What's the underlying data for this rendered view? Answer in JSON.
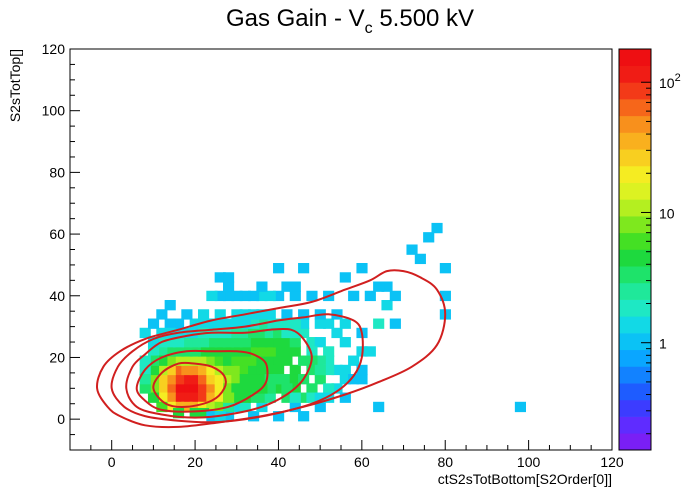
{
  "chart_data": {
    "type": "heatmap",
    "title": {
      "main": "Gas Gain - V",
      "sub": "c",
      "rest": " 5.500 kV"
    },
    "xlabel": "ctS2sTotBottom[S2Order[0]]",
    "ylabel": "S2sTotTop[]",
    "xlim": [
      -10,
      120
    ],
    "ylim": [
      -10,
      120
    ],
    "x_ticks": [
      "0",
      "20",
      "40",
      "60",
      "80",
      "100",
      "120"
    ],
    "y_ticks": [
      "0",
      "20",
      "40",
      "60",
      "80",
      "100",
      "120"
    ],
    "colorbar": {
      "scale": "log",
      "range": [
        0.15,
        180
      ],
      "labels": [
        {
          "value": 1,
          "text": "1"
        },
        {
          "value": 10,
          "text": "10"
        },
        {
          "value": 100,
          "text": "10",
          "sup": "2"
        }
      ]
    },
    "bin_size": [
      2.6,
      3.25
    ],
    "cells": [
      [
        18,
        10,
        150
      ],
      [
        20,
        10,
        150
      ],
      [
        16,
        10,
        140
      ],
      [
        18,
        7,
        130
      ],
      [
        16,
        7,
        120
      ],
      [
        20,
        7,
        120
      ],
      [
        18,
        13,
        110
      ],
      [
        20,
        13,
        110
      ],
      [
        22,
        10,
        90
      ],
      [
        16,
        13,
        90
      ],
      [
        22,
        7,
        80
      ],
      [
        14,
        10,
        70
      ],
      [
        22,
        13,
        65
      ],
      [
        16,
        16,
        60
      ],
      [
        18,
        16,
        55
      ],
      [
        20,
        16,
        55
      ],
      [
        14,
        7,
        50
      ],
      [
        14,
        13,
        45
      ],
      [
        24,
        10,
        45
      ],
      [
        18,
        4,
        40
      ],
      [
        20,
        4,
        40
      ],
      [
        16,
        4,
        38
      ],
      [
        24,
        7,
        35
      ],
      [
        22,
        16,
        35
      ],
      [
        24,
        13,
        30
      ],
      [
        12,
        10,
        28
      ],
      [
        12,
        13,
        25
      ],
      [
        14,
        16,
        28
      ],
      [
        22,
        4,
        22
      ],
      [
        26,
        10,
        20
      ],
      [
        26,
        13,
        18
      ],
      [
        26,
        7,
        18
      ],
      [
        24,
        16,
        18
      ],
      [
        14,
        4,
        20
      ],
      [
        12,
        7,
        18
      ],
      [
        20,
        19,
        12
      ],
      [
        18,
        19,
        12
      ],
      [
        16,
        19,
        10
      ],
      [
        12,
        16,
        10
      ],
      [
        22,
        19,
        10
      ],
      [
        26,
        16,
        10
      ],
      [
        28,
        13,
        10
      ],
      [
        28,
        10,
        9
      ],
      [
        28,
        16,
        8
      ],
      [
        10,
        10,
        8
      ],
      [
        10,
        13,
        7
      ],
      [
        30,
        13,
        7
      ],
      [
        30,
        16,
        7
      ],
      [
        24,
        19,
        8
      ],
      [
        14,
        19,
        7
      ],
      [
        12,
        4,
        6
      ],
      [
        10,
        16,
        5
      ],
      [
        26,
        19,
        6
      ],
      [
        28,
        19,
        5
      ],
      [
        32,
        16,
        6
      ],
      [
        32,
        19,
        6
      ],
      [
        30,
        19,
        6
      ],
      [
        24,
        4,
        10
      ],
      [
        26,
        4,
        8
      ],
      [
        16,
        2,
        5
      ],
      [
        20,
        2,
        4
      ],
      [
        22,
        2,
        4
      ],
      [
        10,
        7,
        4
      ],
      [
        8,
        10,
        3
      ],
      [
        30,
        10,
        5
      ],
      [
        32,
        13,
        5
      ],
      [
        34,
        16,
        5
      ],
      [
        34,
        19,
        6
      ],
      [
        36,
        19,
        5
      ],
      [
        36,
        16,
        5
      ],
      [
        38,
        19,
        4
      ],
      [
        40,
        19,
        5
      ],
      [
        42,
        19,
        4
      ],
      [
        44,
        16,
        4
      ],
      [
        40,
        16,
        4
      ],
      [
        38,
        16,
        4
      ],
      [
        36,
        13,
        4
      ],
      [
        38,
        13,
        3
      ],
      [
        42,
        13,
        3
      ],
      [
        44,
        13,
        4
      ],
      [
        46,
        13,
        3
      ],
      [
        40,
        10,
        4
      ],
      [
        44,
        10,
        4
      ],
      [
        48,
        10,
        3
      ],
      [
        46,
        7,
        3
      ],
      [
        42,
        7,
        3
      ],
      [
        50,
        13,
        3
      ],
      [
        48,
        16,
        3
      ],
      [
        46,
        19,
        3
      ],
      [
        44,
        22,
        4
      ],
      [
        42,
        22,
        5
      ],
      [
        40,
        22,
        5
      ],
      [
        38,
        22,
        6
      ],
      [
        36,
        22,
        6
      ],
      [
        34,
        22,
        6
      ],
      [
        32,
        22,
        5
      ],
      [
        30,
        22,
        5
      ],
      [
        28,
        22,
        4
      ],
      [
        26,
        22,
        4
      ],
      [
        24,
        22,
        4
      ],
      [
        22,
        22,
        4
      ],
      [
        20,
        22,
        3
      ],
      [
        18,
        22,
        3
      ],
      [
        16,
        22,
        3
      ],
      [
        14,
        22,
        3
      ],
      [
        12,
        22,
        2.5
      ],
      [
        10,
        22,
        2
      ],
      [
        36,
        25,
        4
      ],
      [
        38,
        25,
        4
      ],
      [
        40,
        25,
        5
      ],
      [
        42,
        25,
        4
      ],
      [
        44,
        25,
        3
      ],
      [
        34,
        25,
        4
      ],
      [
        32,
        25,
        3
      ],
      [
        30,
        25,
        3
      ],
      [
        28,
        25,
        3
      ],
      [
        26,
        25,
        3
      ],
      [
        24,
        25,
        3
      ],
      [
        22,
        25,
        2.5
      ],
      [
        20,
        25,
        2.5
      ],
      [
        18,
        25,
        2.5
      ],
      [
        16,
        25,
        2
      ],
      [
        14,
        25,
        2
      ],
      [
        12,
        25,
        1.6
      ],
      [
        10,
        25,
        1.4
      ],
      [
        8,
        28,
        1.2
      ],
      [
        12,
        28,
        1.5
      ],
      [
        16,
        28,
        1.5
      ],
      [
        20,
        28,
        1.5
      ],
      [
        24,
        28,
        2
      ],
      [
        28,
        28,
        2
      ],
      [
        32,
        28,
        2.5
      ],
      [
        34,
        28,
        3
      ],
      [
        36,
        28,
        3
      ],
      [
        38,
        28,
        2.5
      ],
      [
        40,
        28,
        3
      ],
      [
        42,
        28,
        2
      ],
      [
        44,
        28,
        1.8
      ],
      [
        46,
        28,
        1.6
      ],
      [
        48,
        25,
        2
      ],
      [
        50,
        25,
        1.5
      ],
      [
        48,
        22,
        2
      ],
      [
        52,
        22,
        1.8
      ],
      [
        52,
        19,
        2
      ],
      [
        50,
        19,
        2.5
      ],
      [
        48,
        19,
        3
      ],
      [
        54,
        16,
        1.5
      ],
      [
        52,
        16,
        2
      ],
      [
        50,
        16,
        2.5
      ],
      [
        54,
        10,
        1.5
      ],
      [
        52,
        10,
        2
      ],
      [
        56,
        13,
        1.3
      ],
      [
        58,
        19,
        1.4
      ],
      [
        60,
        22,
        1.3
      ],
      [
        62,
        22,
        1.2
      ],
      [
        56,
        25,
        1.2
      ],
      [
        54,
        28,
        1.3
      ],
      [
        52,
        31,
        1.5
      ],
      [
        50,
        31,
        1.3
      ],
      [
        46,
        31,
        1.5
      ],
      [
        44,
        31,
        1.8
      ],
      [
        42,
        31,
        1.6
      ],
      [
        40,
        31,
        2
      ],
      [
        38,
        31,
        2
      ],
      [
        36,
        31,
        2.2
      ],
      [
        34,
        31,
        1.8
      ],
      [
        32,
        31,
        1.5
      ],
      [
        30,
        31,
        1.5
      ],
      [
        28,
        31,
        1.4
      ],
      [
        26,
        31,
        1.3
      ],
      [
        24,
        31,
        1.3
      ],
      [
        22,
        31,
        1.2
      ],
      [
        20,
        31,
        1.2
      ],
      [
        16,
        31,
        1.1
      ],
      [
        14,
        31,
        1.1
      ],
      [
        10,
        31,
        1.0
      ],
      [
        12,
        34,
        1.0
      ],
      [
        14,
        37,
        1.1
      ],
      [
        18,
        34,
        1.0
      ],
      [
        22,
        34,
        1.2
      ],
      [
        26,
        34,
        1.3
      ],
      [
        30,
        34,
        1.2
      ],
      [
        32,
        34,
        1.4
      ],
      [
        34,
        34,
        1.3
      ],
      [
        36,
        34,
        1.3
      ],
      [
        38,
        34,
        1.2
      ],
      [
        42,
        34,
        1.1
      ],
      [
        46,
        34,
        1.0
      ],
      [
        50,
        34,
        1.0
      ],
      [
        54,
        34,
        1.1
      ],
      [
        56,
        31,
        1.2
      ],
      [
        60,
        28,
        1.0
      ],
      [
        64,
        31,
        2.0
      ],
      [
        66,
        37,
        1.5
      ],
      [
        62,
        40,
        1.0
      ],
      [
        66,
        43,
        1.0
      ],
      [
        68,
        40,
        1.1
      ],
      [
        64,
        43,
        1.0
      ],
      [
        58,
        40,
        1.0
      ],
      [
        52,
        40,
        1.0
      ],
      [
        48,
        40,
        1.1
      ],
      [
        44,
        40,
        1.0
      ],
      [
        40,
        40,
        1.0
      ],
      [
        38,
        40,
        1.3
      ],
      [
        36,
        40,
        1.2
      ],
      [
        34,
        40,
        1.0
      ],
      [
        32,
        40,
        1.0
      ],
      [
        30,
        40,
        1.1
      ],
      [
        28,
        40,
        1.0
      ],
      [
        26,
        40,
        1.0
      ],
      [
        24,
        40,
        1.2
      ],
      [
        28,
        43,
        1.0
      ],
      [
        26,
        46,
        1.1
      ],
      [
        28,
        46,
        1.0
      ],
      [
        36,
        43,
        1.0
      ],
      [
        42,
        43,
        1.0
      ],
      [
        44,
        43,
        1.1
      ],
      [
        56,
        46,
        1.0
      ],
      [
        40,
        49,
        1.0
      ],
      [
        46,
        49,
        1.0
      ],
      [
        60,
        49,
        1.0
      ],
      [
        74,
        52,
        1.0
      ],
      [
        80,
        49,
        1.0
      ],
      [
        72,
        55,
        1.0
      ],
      [
        76,
        59,
        1.0
      ],
      [
        78,
        62,
        1.0
      ],
      [
        80,
        40,
        1.0
      ],
      [
        80,
        34,
        1.0
      ],
      [
        68,
        31,
        1.0
      ],
      [
        60,
        13,
        1.0
      ],
      [
        56,
        7,
        1.0
      ],
      [
        64,
        4,
        1.0
      ],
      [
        50,
        4,
        1.0
      ],
      [
        44,
        4,
        1.0
      ],
      [
        40,
        1,
        1.0
      ],
      [
        46,
        1,
        1.0
      ],
      [
        34,
        1,
        1.0
      ],
      [
        28,
        1,
        1.0
      ],
      [
        24,
        1,
        1.0
      ],
      [
        30,
        4,
        1.5
      ],
      [
        28,
        4,
        2.5
      ],
      [
        32,
        4,
        2
      ],
      [
        36,
        4,
        1.5
      ],
      [
        34,
        7,
        3
      ],
      [
        32,
        7,
        4
      ],
      [
        30,
        7,
        5
      ],
      [
        28,
        7,
        7
      ],
      [
        26,
        1,
        1.5
      ],
      [
        36,
        7,
        3
      ],
      [
        38,
        7,
        2.5
      ],
      [
        38,
        10,
        3
      ],
      [
        36,
        10,
        4
      ],
      [
        34,
        10,
        5
      ],
      [
        32,
        10,
        5
      ],
      [
        40,
        13,
        3.5
      ],
      [
        34,
        13,
        5
      ],
      [
        42,
        10,
        3
      ],
      [
        44,
        7,
        2
      ],
      [
        48,
        7,
        2
      ],
      [
        50,
        7,
        1.5
      ],
      [
        52,
        7,
        1.2
      ],
      [
        56,
        16,
        1.2
      ],
      [
        60,
        16,
        1.0
      ],
      [
        58,
        13,
        1.0
      ],
      [
        12,
        19,
        5
      ],
      [
        10,
        19,
        3
      ],
      [
        8,
        19,
        2
      ],
      [
        8,
        16,
        2
      ],
      [
        8,
        13,
        2.5
      ],
      [
        98,
        4,
        1.0
      ],
      [
        14,
        28,
        1.3
      ],
      [
        18,
        28,
        1.4
      ],
      [
        22,
        28,
        1.6
      ],
      [
        26,
        28,
        1.8
      ],
      [
        30,
        28,
        2.2
      ]
    ],
    "contours": [
      [
        [
          -3.5,
          10
        ],
        [
          -2,
          17
        ],
        [
          2,
          22
        ],
        [
          8,
          26
        ],
        [
          16,
          29
        ],
        [
          24,
          32
        ],
        [
          32,
          34
        ],
        [
          40,
          36
        ],
        [
          48,
          38
        ],
        [
          56,
          42
        ],
        [
          62,
          45
        ],
        [
          66,
          48
        ],
        [
          70,
          48
        ],
        [
          74,
          46
        ],
        [
          78,
          42
        ],
        [
          80,
          34
        ],
        [
          78,
          24
        ],
        [
          72,
          17
        ],
        [
          64,
          12
        ],
        [
          56,
          8
        ],
        [
          46,
          4
        ],
        [
          36,
          1
        ],
        [
          26,
          -1
        ],
        [
          16,
          -2.5
        ],
        [
          8,
          -2
        ],
        [
          2,
          1
        ],
        [
          -1,
          4
        ],
        [
          -3.5,
          10
        ]
      ],
      [
        [
          0,
          10
        ],
        [
          1.5,
          17
        ],
        [
          5,
          22
        ],
        [
          10,
          26
        ],
        [
          16,
          28
        ],
        [
          24,
          29
        ],
        [
          32,
          30
        ],
        [
          40,
          32
        ],
        [
          46,
          33
        ],
        [
          52,
          34
        ],
        [
          58,
          32
        ],
        [
          60,
          28
        ],
        [
          60,
          20
        ],
        [
          58,
          14
        ],
        [
          54,
          9
        ],
        [
          48,
          5
        ],
        [
          40,
          2
        ],
        [
          32,
          0
        ],
        [
          24,
          -1
        ],
        [
          16,
          -0.5
        ],
        [
          8,
          1
        ],
        [
          3,
          4
        ],
        [
          0,
          10
        ]
      ],
      [
        [
          3.5,
          10
        ],
        [
          5,
          17
        ],
        [
          8,
          21
        ],
        [
          12,
          25
        ],
        [
          18,
          27
        ],
        [
          24,
          28
        ],
        [
          32,
          28
        ],
        [
          38,
          29
        ],
        [
          43,
          29
        ],
        [
          46,
          26
        ],
        [
          48,
          20
        ],
        [
          46,
          13
        ],
        [
          42,
          8
        ],
        [
          36,
          4
        ],
        [
          28,
          1.5
        ],
        [
          20,
          0.5
        ],
        [
          12,
          1.5
        ],
        [
          6,
          4
        ],
        [
          3.5,
          10
        ]
      ],
      [
        [
          6,
          10
        ],
        [
          8,
          16
        ],
        [
          12,
          20
        ],
        [
          18,
          22
        ],
        [
          24,
          22
        ],
        [
          30,
          22
        ],
        [
          34,
          21
        ],
        [
          37,
          18
        ],
        [
          37,
          12
        ],
        [
          34,
          8
        ],
        [
          28,
          4
        ],
        [
          20,
          2.5
        ],
        [
          12,
          3
        ],
        [
          8,
          6
        ],
        [
          6,
          10
        ]
      ],
      [
        [
          10,
          10
        ],
        [
          12,
          15
        ],
        [
          16,
          18
        ],
        [
          20,
          18
        ],
        [
          24,
          17
        ],
        [
          27,
          14
        ],
        [
          27,
          10
        ],
        [
          24,
          6
        ],
        [
          18,
          4
        ],
        [
          13,
          5
        ],
        [
          10,
          10
        ]
      ]
    ]
  }
}
